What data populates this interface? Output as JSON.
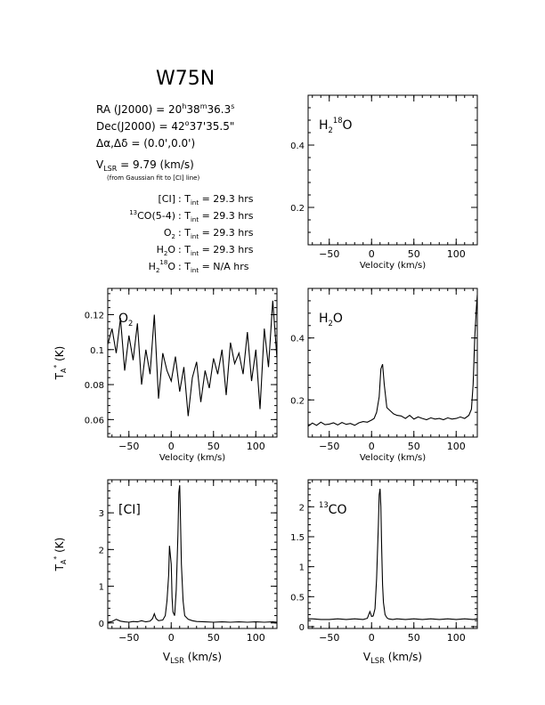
{
  "title": "W75N",
  "info": {
    "ra": {
      "label": "RA (J2000)",
      "eq": "=",
      "h": "20",
      "hu": "h",
      "m": "38",
      "mu": "m",
      "s": "36.3",
      "su": "s"
    },
    "dec": {
      "label": "Dec(J2000)",
      "eq": "=",
      "d": "42",
      "du": "o",
      "rest": "37'35.5\""
    },
    "offset": {
      "label": "Δα,Δδ",
      "eq": "=",
      "value": "(0.0',0.0')"
    },
    "vlsr": {
      "v": "V",
      "sub": "LSR",
      "eq": "= 9.79 (km/s)",
      "note": "(from Gaussian fit to [CI] line)"
    },
    "tint": [
      {
        "pre": "",
        "name": "[CI]",
        "sub": "",
        "suffix": "",
        "colon": ":",
        "t": "T",
        "tsub": "int",
        "value": "= 29.3 hrs"
      },
      {
        "pre": "13",
        "name": "CO(5-4)",
        "sub": "",
        "suffix": "",
        "colon": ":",
        "t": "T",
        "tsub": "int",
        "value": "= 29.3 hrs"
      },
      {
        "pre": "",
        "name": "O",
        "sub": "2",
        "suffix": "",
        "colon": ":",
        "t": "T",
        "tsub": "int",
        "value": "= 29.3 hrs"
      },
      {
        "pre": "",
        "name": "H",
        "sub": "2",
        "suffix": "O",
        "colon": ":",
        "t": "T",
        "tsub": "int",
        "value": "= 29.3 hrs"
      },
      {
        "pre": "",
        "name": "H",
        "sub": "2",
        "sup": "18",
        "suffix": "O",
        "colon": ":",
        "t": "T",
        "tsub": "int",
        "value": "= N/A hrs"
      }
    ]
  },
  "chart_data": [
    {
      "id": "h2_18o",
      "type": "line",
      "label": {
        "base": "H",
        "sub": "2",
        "sup": "18",
        "tail": "O"
      },
      "xlabel": "Velocity (km/s)",
      "ylabel": "",
      "xlim": [
        -75,
        125
      ],
      "ylim": [
        0.08,
        0.56
      ],
      "xticks": [
        -50,
        0,
        50,
        100
      ],
      "xticklabels": [
        "−50",
        "0",
        "50",
        "100"
      ],
      "yticks": [
        0.2,
        0.4
      ],
      "yticklabels": [
        "0.2",
        "0.4"
      ],
      "x": [],
      "y": []
    },
    {
      "id": "o2",
      "type": "line",
      "label": {
        "base": "O",
        "sub": "2"
      },
      "xlabel": "Velocity (km/s)",
      "ylabel": "T_A* (K)",
      "xlim": [
        -75,
        125
      ],
      "ylim": [
        0.05,
        0.135
      ],
      "xticks": [
        -50,
        0,
        50,
        100
      ],
      "xticklabels": [
        "−50",
        "0",
        "50",
        "100"
      ],
      "yticks": [
        0.06,
        0.08,
        0.1,
        0.12
      ],
      "yticklabels": [
        "0.06",
        "0.08",
        "0.1",
        "0.12"
      ],
      "x": [
        -75,
        -70,
        -65,
        -60,
        -55,
        -50,
        -45,
        -40,
        -35,
        -30,
        -25,
        -20,
        -15,
        -10,
        -5,
        0,
        5,
        10,
        15,
        20,
        25,
        30,
        35,
        40,
        45,
        50,
        55,
        60,
        65,
        70,
        75,
        80,
        85,
        90,
        95,
        100,
        105,
        110,
        115,
        120,
        125
      ],
      "y": [
        0.103,
        0.112,
        0.098,
        0.118,
        0.088,
        0.108,
        0.094,
        0.115,
        0.08,
        0.1,
        0.086,
        0.12,
        0.072,
        0.098,
        0.088,
        0.082,
        0.096,
        0.076,
        0.09,
        0.062,
        0.084,
        0.093,
        0.07,
        0.088,
        0.078,
        0.095,
        0.086,
        0.1,
        0.074,
        0.104,
        0.092,
        0.098,
        0.086,
        0.11,
        0.082,
        0.1,
        0.066,
        0.112,
        0.09,
        0.128,
        0.095
      ]
    },
    {
      "id": "h2o",
      "type": "line",
      "label": {
        "base": "H",
        "sub": "2",
        "tail": "O"
      },
      "xlabel": "Velocity (km/s)",
      "ylabel": "",
      "xlim": [
        -75,
        125
      ],
      "ylim": [
        0.08,
        0.56
      ],
      "xticks": [
        -50,
        0,
        50,
        100
      ],
      "xticklabels": [
        "−50",
        "0",
        "50",
        "100"
      ],
      "yticks": [
        0.2,
        0.4
      ],
      "yticklabels": [
        "0.2",
        "0.4"
      ],
      "x": [
        -75,
        -70,
        -65,
        -60,
        -55,
        -50,
        -45,
        -40,
        -35,
        -30,
        -25,
        -20,
        -15,
        -10,
        -5,
        0,
        3,
        6,
        9,
        11,
        13,
        15,
        18,
        22,
        26,
        30,
        35,
        40,
        45,
        50,
        55,
        60,
        65,
        70,
        75,
        80,
        85,
        90,
        95,
        100,
        105,
        110,
        115,
        118,
        120,
        122,
        124,
        125
      ],
      "y": [
        0.115,
        0.125,
        0.118,
        0.128,
        0.12,
        0.122,
        0.126,
        0.119,
        0.127,
        0.121,
        0.124,
        0.118,
        0.126,
        0.13,
        0.128,
        0.135,
        0.14,
        0.16,
        0.21,
        0.3,
        0.315,
        0.25,
        0.175,
        0.165,
        0.155,
        0.15,
        0.148,
        0.14,
        0.15,
        0.138,
        0.145,
        0.14,
        0.136,
        0.142,
        0.138,
        0.14,
        0.136,
        0.142,
        0.138,
        0.14,
        0.145,
        0.14,
        0.15,
        0.17,
        0.25,
        0.4,
        0.5,
        0.54
      ]
    },
    {
      "id": "ci",
      "type": "line",
      "label": {
        "base": "[CI]"
      },
      "xlabel": "V_LSR (km/s)",
      "ylabel": "T_A* (K)",
      "xlim": [
        -75,
        125
      ],
      "ylim": [
        -0.15,
        3.9
      ],
      "xticks": [
        -50,
        0,
        50,
        100
      ],
      "xticklabels": [
        "−50",
        "0",
        "50",
        "100"
      ],
      "yticks": [
        0,
        1,
        2,
        3
      ],
      "yticklabels": [
        "0",
        "1",
        "2",
        "3"
      ],
      "x": [
        -75,
        -70,
        -65,
        -60,
        -55,
        -50,
        -45,
        -40,
        -35,
        -30,
        -25,
        -22,
        -20,
        -18,
        -15,
        -10,
        -7,
        -5,
        -3,
        -2,
        0,
        1,
        2,
        4,
        6,
        8,
        9,
        10,
        11,
        12,
        14,
        16,
        20,
        25,
        30,
        40,
        50,
        60,
        70,
        80,
        90,
        100,
        110,
        120,
        125
      ],
      "y": [
        0.02,
        0.04,
        0.1,
        0.05,
        0.03,
        0.02,
        0.04,
        0.03,
        0.06,
        0.03,
        0.05,
        0.12,
        0.25,
        0.12,
        0.06,
        0.08,
        0.2,
        0.6,
        1.3,
        2.1,
        1.6,
        0.7,
        0.3,
        0.2,
        0.9,
        2.4,
        3.55,
        3.75,
        2.8,
        1.6,
        0.6,
        0.2,
        0.1,
        0.06,
        0.04,
        0.03,
        0.02,
        0.03,
        0.02,
        0.03,
        0.02,
        0.03,
        0.02,
        0.03,
        0.02
      ]
    },
    {
      "id": "co13",
      "type": "line",
      "label": {
        "pre": "13",
        "base": "CO"
      },
      "xlabel": "V_LSR (km/s)",
      "ylabel": "",
      "xlim": [
        -75,
        125
      ],
      "ylim": [
        -0.03,
        2.45
      ],
      "xticks": [
        -50,
        0,
        50,
        100
      ],
      "xticklabels": [
        "−50",
        "0",
        "50",
        "100"
      ],
      "yticks": [
        0,
        0.5,
        1,
        1.5,
        2
      ],
      "yticklabels": [
        "0",
        "0.5",
        "1",
        "1.5",
        "2"
      ],
      "x": [
        -75,
        -70,
        -60,
        -50,
        -40,
        -30,
        -20,
        -10,
        -5,
        -2,
        0,
        2,
        4,
        6,
        8,
        9,
        10,
        11,
        12,
        13,
        14,
        16,
        18,
        20,
        25,
        30,
        40,
        50,
        60,
        70,
        80,
        90,
        100,
        110,
        120,
        125
      ],
      "y": [
        0.13,
        0.13,
        0.12,
        0.12,
        0.13,
        0.12,
        0.13,
        0.12,
        0.14,
        0.25,
        0.17,
        0.18,
        0.3,
        0.8,
        1.7,
        2.2,
        2.3,
        2.0,
        1.3,
        0.7,
        0.4,
        0.2,
        0.15,
        0.13,
        0.12,
        0.13,
        0.12,
        0.13,
        0.12,
        0.13,
        0.12,
        0.13,
        0.12,
        0.13,
        0.12,
        0.13
      ]
    }
  ]
}
